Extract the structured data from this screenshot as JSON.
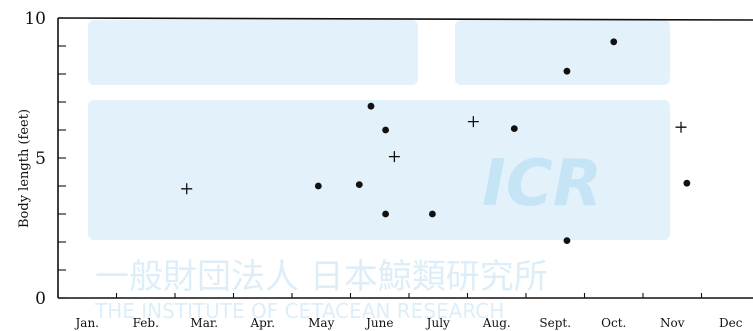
{
  "chart_data": {
    "type": "scatter",
    "ylabel": "Body length (feet)",
    "xlabel": "",
    "categories": [
      "Jan.",
      "Feb.",
      "Mar.",
      "Apr.",
      "May",
      "June",
      "July",
      "Aug.",
      "Sept.",
      "Oct.",
      "Nov",
      "Dec"
    ],
    "yticks": [
      "0",
      "5",
      "10"
    ],
    "ylim": [
      0,
      10
    ],
    "xlim_months": [
      0,
      12
    ],
    "grid": false,
    "series": [
      {
        "marker": "dot",
        "points": [
          {
            "x": 4.45,
            "y": 4.0
          },
          {
            "x": 5.15,
            "y": 4.05
          },
          {
            "x": 5.35,
            "y": 6.85
          },
          {
            "x": 5.6,
            "y": 6.0
          },
          {
            "x": 5.6,
            "y": 3.0
          },
          {
            "x": 6.4,
            "y": 3.0
          },
          {
            "x": 7.8,
            "y": 6.05
          },
          {
            "x": 8.7,
            "y": 8.1
          },
          {
            "x": 8.7,
            "y": 2.05
          },
          {
            "x": 9.5,
            "y": 9.15
          },
          {
            "x": 10.75,
            "y": 4.1
          }
        ]
      },
      {
        "marker": "plus",
        "points": [
          {
            "x": 2.2,
            "y": 3.9
          },
          {
            "x": 5.75,
            "y": 5.05
          },
          {
            "x": 7.1,
            "y": 6.3
          },
          {
            "x": 10.65,
            "y": 6.1
          }
        ]
      }
    ]
  },
  "watermark": {
    "logo_text": "ICR",
    "org_name_jp": "一般財団法人 日本鯨類研究所",
    "org_name_en": "THE INSTITUTE OF CETACEAN RESEARCH",
    "color": "#8fcdf0"
  }
}
